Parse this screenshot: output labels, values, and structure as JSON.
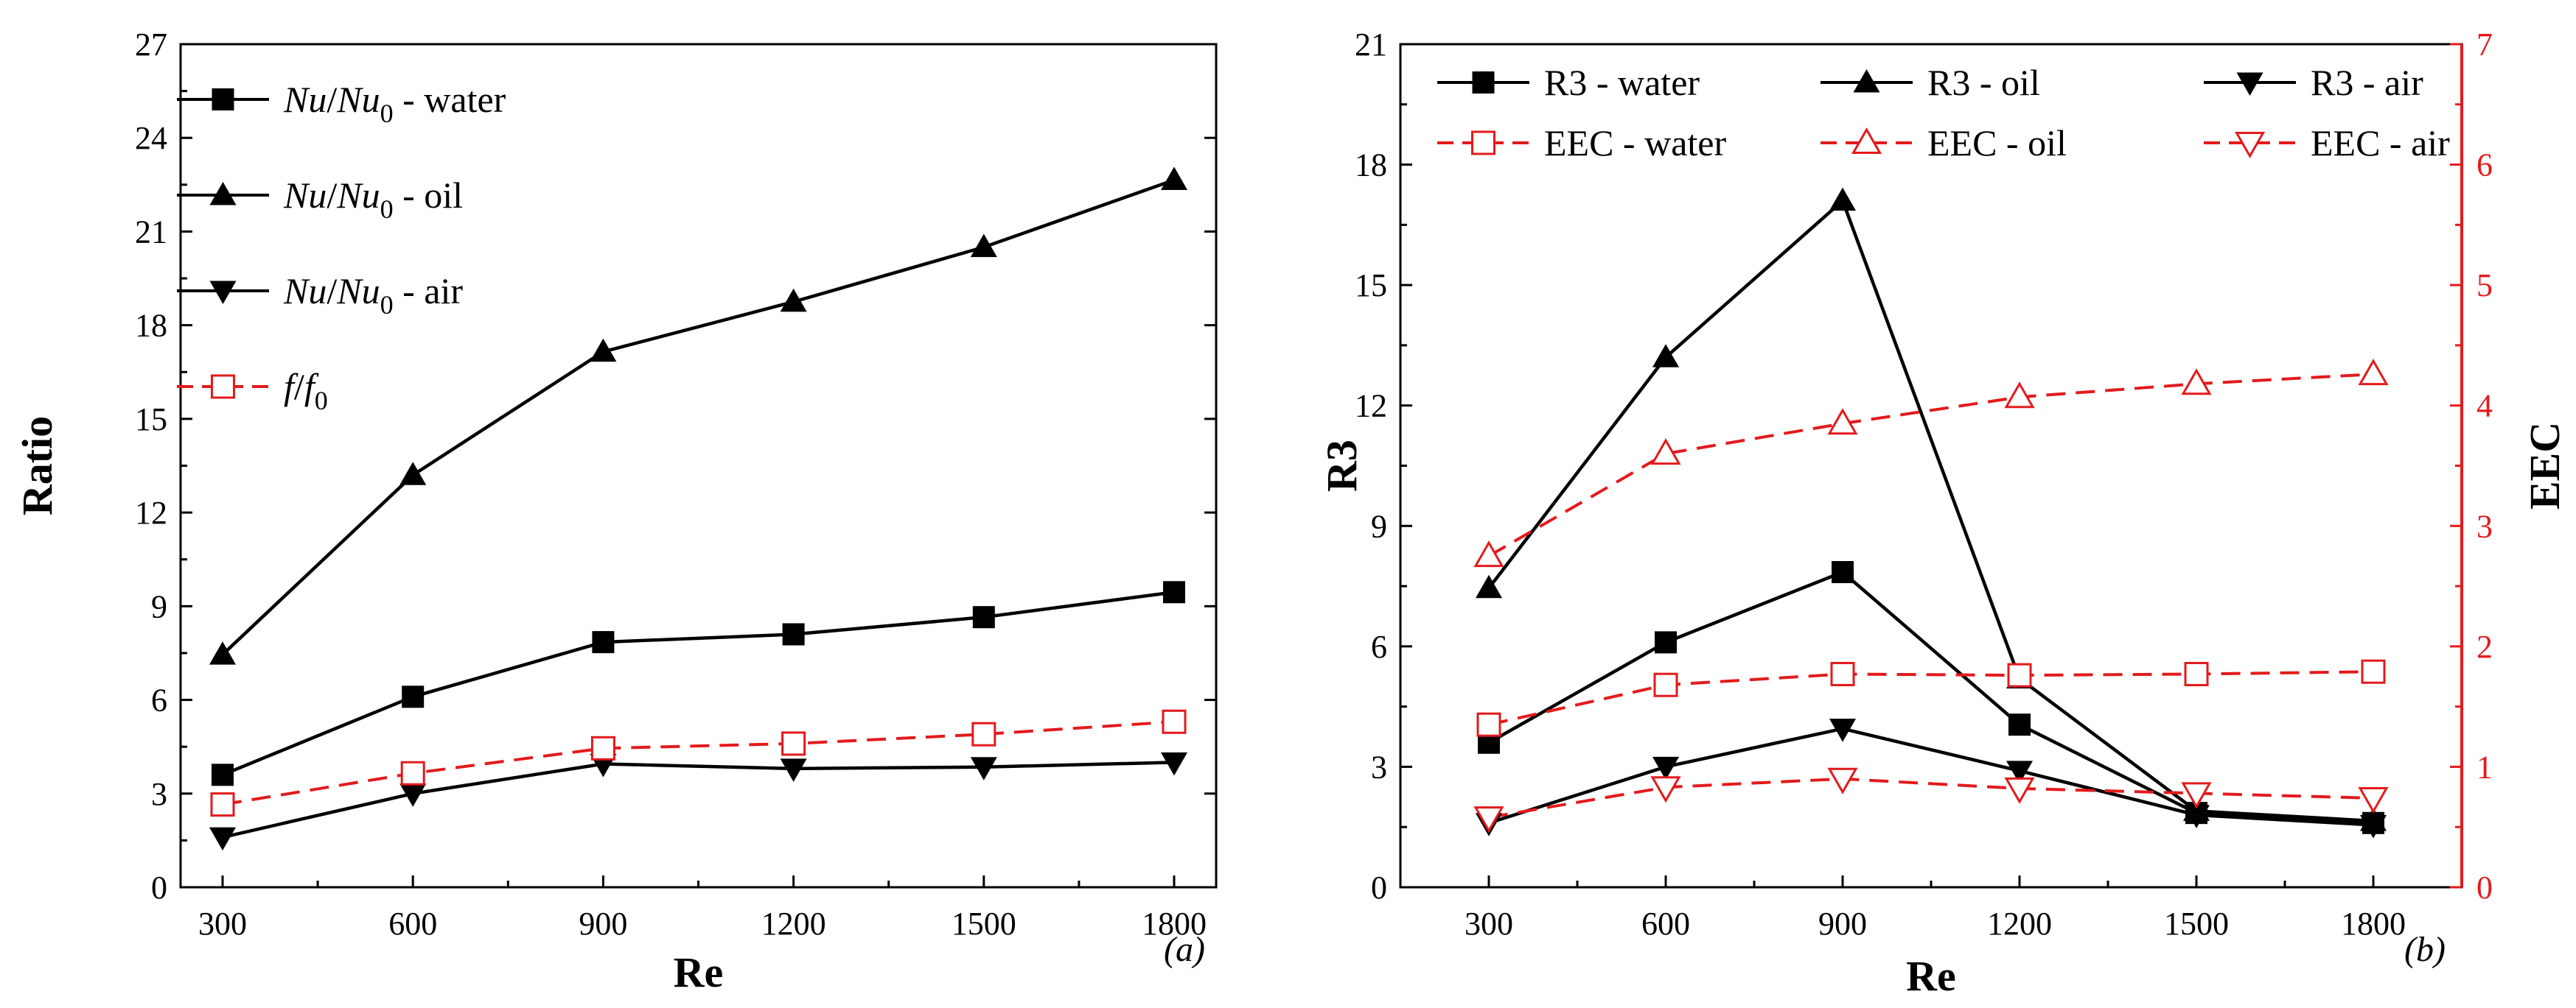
{
  "chart_data": [
    {
      "type": "line",
      "panel_label": "(a)",
      "xlabel": "Re",
      "ylabel": "Ratio",
      "x": [
        300,
        600,
        900,
        1200,
        1500,
        1800
      ],
      "x_ticks": [
        "300",
        "600",
        "900",
        "1200",
        "1500",
        "1800"
      ],
      "ylim": [
        0,
        27
      ],
      "y_ticks": [
        "0",
        "3",
        "6",
        "9",
        "12",
        "15",
        "18",
        "21",
        "24",
        "27"
      ],
      "grid": false,
      "legend_position": "top-left",
      "series": [
        {
          "name": "Nu/Nu0 - water",
          "legend_parts": [
            "Nu",
            "/",
            "Nu",
            "0",
            " - water"
          ],
          "marker": "square-filled",
          "color": "#000000",
          "dash": "solid",
          "values": [
            3.6,
            6.1,
            7.85,
            8.1,
            8.65,
            9.45
          ]
        },
        {
          "name": "Nu/Nu0 - oil",
          "legend_parts": [
            "Nu",
            "/",
            "Nu",
            "0",
            " - oil"
          ],
          "marker": "triangle-up-filled",
          "color": "#000000",
          "dash": "solid",
          "values": [
            7.45,
            13.2,
            17.15,
            18.75,
            20.5,
            22.65
          ]
        },
        {
          "name": "Nu/Nu0 - air",
          "legend_parts": [
            "Nu",
            "/",
            "Nu",
            "0",
            " - air"
          ],
          "marker": "triangle-down-filled",
          "color": "#000000",
          "dash": "solid",
          "values": [
            1.6,
            3.0,
            3.95,
            3.8,
            3.85,
            4.0
          ]
        },
        {
          "name": "f/f0",
          "legend_parts": [
            "f",
            "/",
            "f",
            "0",
            ""
          ],
          "marker": "square-open",
          "color": "#e31a1c",
          "dash": "dashed",
          "values": [
            2.65,
            3.65,
            4.45,
            4.6,
            4.9,
            5.3
          ]
        }
      ]
    },
    {
      "type": "line",
      "panel_label": "(b)",
      "xlabel": "Re",
      "ylabel": "R3",
      "ylabel_right": "EEC",
      "x": [
        300,
        600,
        900,
        1200,
        1500,
        1800
      ],
      "x_ticks": [
        "300",
        "600",
        "900",
        "1200",
        "1500",
        "1800"
      ],
      "ylim": [
        0,
        21
      ],
      "y_ticks": [
        "0",
        "3",
        "6",
        "9",
        "12",
        "15",
        "18",
        "21"
      ],
      "ylim_right": [
        0,
        7
      ],
      "y_ticks_right": [
        "0",
        "1",
        "2",
        "3",
        "4",
        "5",
        "6",
        "7"
      ],
      "right_axis_color": "#e31a1c",
      "grid": false,
      "legend_position": "top",
      "series": [
        {
          "name": "R3 - water",
          "axis": "left",
          "marker": "square-filled",
          "color": "#000000",
          "dash": "solid",
          "values": [
            3.6,
            6.1,
            7.85,
            4.05,
            1.85,
            1.6
          ]
        },
        {
          "name": "R3 - oil",
          "axis": "left",
          "marker": "triangle-up-filled",
          "color": "#000000",
          "dash": "solid",
          "values": [
            7.45,
            13.2,
            17.1,
            5.2,
            1.9,
            1.65
          ]
        },
        {
          "name": "R3 - air",
          "axis": "left",
          "marker": "triangle-down-filled",
          "color": "#000000",
          "dash": "solid",
          "values": [
            1.6,
            3.0,
            3.95,
            2.9,
            1.8,
            1.55
          ]
        },
        {
          "name": "EEC - water",
          "axis": "right",
          "marker": "square-open",
          "color": "#e31a1c",
          "dash": "dashed",
          "values": [
            1.35,
            1.68,
            1.77,
            1.76,
            1.77,
            1.79
          ]
        },
        {
          "name": "EEC - oil",
          "axis": "right",
          "marker": "triangle-up-open",
          "color": "#e31a1c",
          "dash": "dashed",
          "values": [
            2.75,
            3.6,
            3.85,
            4.07,
            4.18,
            4.26
          ]
        },
        {
          "name": "EEC - air",
          "axis": "right",
          "marker": "triangle-down-open",
          "color": "#e31a1c",
          "dash": "dashed",
          "values": [
            0.58,
            0.83,
            0.9,
            0.82,
            0.78,
            0.74
          ]
        }
      ]
    }
  ]
}
